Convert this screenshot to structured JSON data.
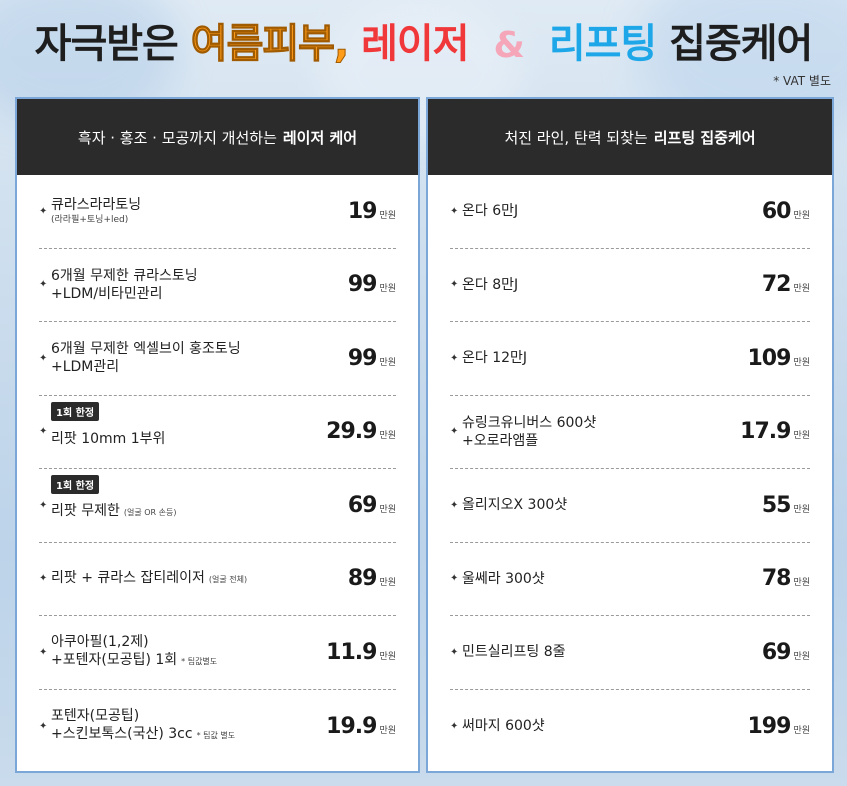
{
  "headline": {
    "part1": "자극받은",
    "part2": "여름피부,",
    "part3": "레이저",
    "amp": "&",
    "part4": "리프팅",
    "part5": "집중케어"
  },
  "vat_note": "* VAT 별도",
  "left_panel": {
    "title_prefix": "흑자 · 홍조 · 모공까지 개선하는",
    "title_strong": "레이저 케어",
    "items": [
      {
        "name": "큐라스라라토닝",
        "sub": "(라라필+토닝+led)",
        "price": "19",
        "unit": "만원"
      },
      {
        "name": "6개월 무제한 큐라스토닝",
        "sub2": "+LDM/비타민관리",
        "price": "99",
        "unit": "만원"
      },
      {
        "name": "6개월 무제한 엑셀브이 홍조토닝",
        "sub2": "+LDM관리",
        "price": "99",
        "unit": "만원"
      },
      {
        "tag": "1회 한정",
        "name": "리팟 10mm 1부위",
        "price": "29.9",
        "unit": "만원"
      },
      {
        "tag": "1회 한정",
        "name": "리팟 무제한",
        "note": "(얼굴 OR 손등)",
        "price": "69",
        "unit": "만원"
      },
      {
        "name": "리팟 + 큐라스 잡티레이저",
        "note": "(얼굴 전체)",
        "price": "89",
        "unit": "만원"
      },
      {
        "name": "아쿠아필(1,2제)",
        "sub2": "+포텐자(모공팁) 1회",
        "note": "* 팁값별도",
        "price": "11.9",
        "unit": "만원"
      },
      {
        "name": "포텐자(모공팁)",
        "sub2": "+스킨보톡스(국산) 3cc",
        "note": "* 팁값 별도",
        "price": "19.9",
        "unit": "만원"
      }
    ]
  },
  "right_panel": {
    "title_prefix": "처진 라인, 탄력 되찾는",
    "title_strong": "리프팅 집중케어",
    "items": [
      {
        "name": "온다 6만J",
        "price": "60",
        "unit": "만원"
      },
      {
        "name": "온다 8만J",
        "price": "72",
        "unit": "만원"
      },
      {
        "name": "온다 12만J",
        "price": "109",
        "unit": "만원"
      },
      {
        "name": "슈링크유니버스 600샷",
        "sub2": "+오로라앰플",
        "price": "17.9",
        "unit": "만원"
      },
      {
        "name": "올리지오X 300샷",
        "price": "55",
        "unit": "만원"
      },
      {
        "name": "울쎄라 300샷",
        "price": "78",
        "unit": "만원"
      },
      {
        "name": "민트실리프팅 8줄",
        "price": "69",
        "unit": "만원"
      },
      {
        "name": "써마지 600샷",
        "price": "199",
        "unit": "만원"
      }
    ]
  },
  "bullet_glyph": "✦"
}
